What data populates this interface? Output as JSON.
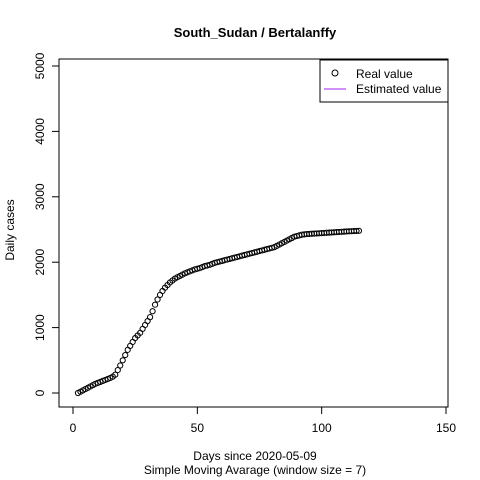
{
  "chart_data": {
    "type": "scatter",
    "title": "South_Sudan / Bertalanffy",
    "xlabel": "Days since 2020-05-09",
    "subtitle": "Simple Moving Avarage (window size = 7)",
    "ylabel": "Daily cases",
    "xlim": [
      0,
      150
    ],
    "ylim": [
      0,
      5000
    ],
    "xticks": [
      0,
      50,
      100,
      150
    ],
    "yticks": [
      0,
      1000,
      2000,
      3000,
      4000,
      5000
    ],
    "grid": false,
    "legend": {
      "position": "top-right",
      "entries": [
        {
          "label": "Real value",
          "marker": "open-circle",
          "color": "#000000"
        },
        {
          "label": "Estimated value",
          "marker": "line",
          "color": "#a020f0"
        }
      ]
    },
    "series": [
      {
        "name": "Real value",
        "x": [
          2,
          3,
          4,
          5,
          6,
          7,
          8,
          9,
          10,
          11,
          12,
          13,
          14,
          15,
          16,
          17,
          18,
          19,
          20,
          21,
          22,
          23,
          24,
          25,
          26,
          27,
          28,
          29,
          30,
          31,
          32,
          33,
          34,
          35,
          36,
          37,
          38,
          39,
          40,
          41,
          42,
          43,
          44,
          45,
          46,
          47,
          48,
          49,
          50,
          51,
          52,
          53,
          54,
          55,
          56,
          57,
          58,
          59,
          60,
          61,
          62,
          63,
          64,
          65,
          66,
          67,
          68,
          69,
          70,
          71,
          72,
          73,
          74,
          75,
          76,
          77,
          78,
          79,
          80,
          81,
          82,
          83,
          84,
          85,
          86,
          87,
          88,
          89,
          90,
          91,
          92,
          93,
          94,
          95,
          96,
          97,
          98,
          99,
          100,
          101,
          102,
          103,
          104,
          105,
          106,
          107,
          108,
          109,
          110,
          111,
          112,
          113,
          114,
          115
        ],
        "y": [
          0,
          20,
          40,
          60,
          80,
          100,
          120,
          140,
          155,
          170,
          185,
          200,
          215,
          230,
          250,
          280,
          350,
          420,
          500,
          580,
          660,
          720,
          780,
          840,
          880,
          920,
          980,
          1040,
          1100,
          1160,
          1250,
          1350,
          1430,
          1500,
          1560,
          1610,
          1650,
          1690,
          1720,
          1750,
          1770,
          1790,
          1810,
          1830,
          1845,
          1860,
          1875,
          1890,
          1900,
          1910,
          1925,
          1940,
          1950,
          1960,
          1975,
          1990,
          2000,
          2010,
          2020,
          2030,
          2040,
          2050,
          2060,
          2070,
          2080,
          2090,
          2100,
          2110,
          2120,
          2130,
          2140,
          2150,
          2160,
          2170,
          2180,
          2190,
          2200,
          2210,
          2220,
          2230,
          2250,
          2270,
          2290,
          2310,
          2330,
          2350,
          2370,
          2390,
          2400,
          2410,
          2420,
          2425,
          2430,
          2432,
          2435,
          2437,
          2440,
          2442,
          2445,
          2447,
          2450,
          2452,
          2455,
          2457,
          2460,
          2462,
          2465,
          2467,
          2470,
          2472,
          2474,
          2476,
          2478,
          2480
        ]
      },
      {
        "name": "Estimated value",
        "x": [],
        "y": []
      }
    ]
  }
}
